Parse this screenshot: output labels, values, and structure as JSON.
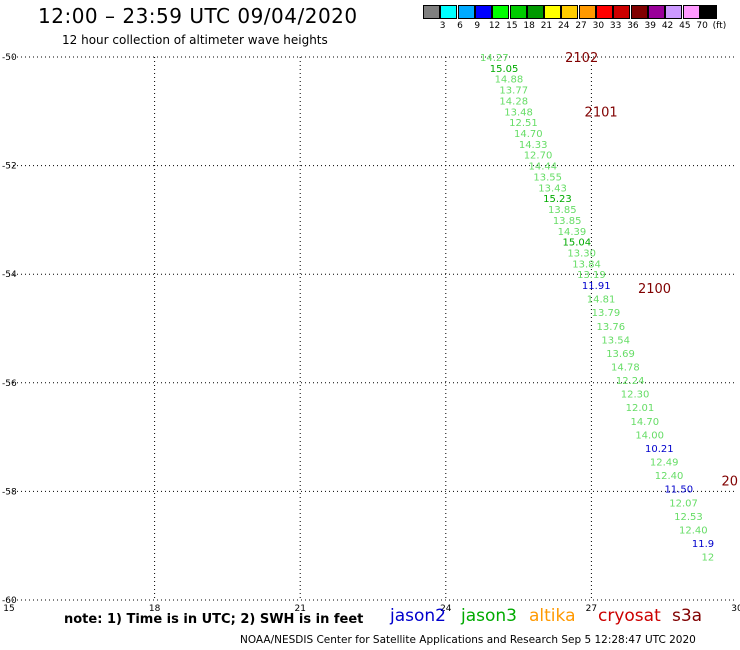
{
  "header": {
    "title": "12:00 – 23:59 UTC 09/04/2020",
    "subtitle": "12 hour collection of altimeter wave heights"
  },
  "colorbar": {
    "labels": [
      "3",
      "6",
      "9",
      "12",
      "15",
      "18",
      "21",
      "24",
      "27",
      "30",
      "33",
      "36",
      "39",
      "42",
      "45",
      "70",
      "(ft)"
    ],
    "colors": [
      "#7f7f7f",
      "#00ffff",
      "#00aaff",
      "#0000ff",
      "#00ff00",
      "#00cc00",
      "#009900",
      "#ffff00",
      "#ffcc00",
      "#ff9900",
      "#ff0000",
      "#cc0000",
      "#800000",
      "#990099",
      "#cc99ff",
      "#ff99ff",
      "#000000"
    ]
  },
  "footer": {
    "note": "note: 1) Time is in UTC; 2) SWH is in feet",
    "credit": "NOAA/NESDIS Center for Satellite Applications and Research   Sep  5 12:28:47 UTC 2020"
  },
  "satellites": [
    {
      "name": "jason2",
      "color": "#0000cc"
    },
    {
      "name": "jason3",
      "color": "#00aa00"
    },
    {
      "name": "altika",
      "color": "#ff9900"
    },
    {
      "name": "cryosat",
      "color": "#cc0000"
    },
    {
      "name": "s3a",
      "color": "#800000"
    }
  ],
  "chart_data": {
    "type": "scatter",
    "xlim": [
      15,
      30
    ],
    "ylim": [
      -60,
      -50
    ],
    "x_ticks": [
      "15",
      "18",
      "21",
      "24",
      "27",
      "30"
    ],
    "y_ticks": [
      "-50",
      "-52",
      "-54",
      "-56",
      "-58",
      "-60"
    ],
    "grid": true,
    "points": [
      {
        "x": 25.0,
        "y": -50.0,
        "label": "14.27",
        "color": "#66dd66"
      },
      {
        "x": 25.2,
        "y": -50.2,
        "label": "15.05",
        "color": "#00aa00"
      },
      {
        "x": 25.3,
        "y": -50.4,
        "label": "14.88",
        "color": "#66dd66"
      },
      {
        "x": 25.4,
        "y": -50.6,
        "label": "13.77",
        "color": "#66dd66"
      },
      {
        "x": 25.4,
        "y": -50.8,
        "label": "14.28",
        "color": "#66dd66"
      },
      {
        "x": 25.5,
        "y": -51.0,
        "label": "13.48",
        "color": "#66dd66"
      },
      {
        "x": 25.6,
        "y": -51.2,
        "label": "12.51",
        "color": "#66dd66"
      },
      {
        "x": 25.7,
        "y": -51.4,
        "label": "14.70",
        "color": "#66dd66"
      },
      {
        "x": 25.8,
        "y": -51.6,
        "label": "14.33",
        "color": "#66dd66"
      },
      {
        "x": 25.9,
        "y": -51.8,
        "label": "12.70",
        "color": "#66dd66"
      },
      {
        "x": 26.0,
        "y": -52.0,
        "label": "14.44",
        "color": "#66dd66"
      },
      {
        "x": 26.1,
        "y": -52.2,
        "label": "13.55",
        "color": "#66dd66"
      },
      {
        "x": 26.2,
        "y": -52.4,
        "label": "13.43",
        "color": "#66dd66"
      },
      {
        "x": 26.3,
        "y": -52.6,
        "label": "15.23",
        "color": "#00aa00"
      },
      {
        "x": 26.4,
        "y": -52.8,
        "label": "13.85",
        "color": "#66dd66"
      },
      {
        "x": 26.5,
        "y": -53.0,
        "label": "13.85",
        "color": "#66dd66"
      },
      {
        "x": 26.6,
        "y": -53.2,
        "label": "14.39",
        "color": "#66dd66"
      },
      {
        "x": 26.7,
        "y": -53.4,
        "label": "15.04",
        "color": "#00aa00"
      },
      {
        "x": 26.8,
        "y": -53.6,
        "label": "13.30",
        "color": "#66dd66"
      },
      {
        "x": 26.9,
        "y": -53.8,
        "label": "13.84",
        "color": "#66dd66"
      },
      {
        "x": 27.0,
        "y": -54.0,
        "label": "13.19",
        "color": "#66dd66"
      },
      {
        "x": 27.1,
        "y": -54.2,
        "label": "11.91",
        "color": "#0000cc"
      },
      {
        "x": 27.2,
        "y": -54.45,
        "label": "14.81",
        "color": "#66dd66"
      },
      {
        "x": 27.3,
        "y": -54.7,
        "label": "13.79",
        "color": "#66dd66"
      },
      {
        "x": 27.4,
        "y": -54.95,
        "label": "13.76",
        "color": "#66dd66"
      },
      {
        "x": 27.5,
        "y": -55.2,
        "label": "13.54",
        "color": "#66dd66"
      },
      {
        "x": 27.6,
        "y": -55.45,
        "label": "13.69",
        "color": "#66dd66"
      },
      {
        "x": 27.7,
        "y": -55.7,
        "label": "14.78",
        "color": "#66dd66"
      },
      {
        "x": 27.8,
        "y": -55.95,
        "label": "12.24",
        "color": "#66dd66"
      },
      {
        "x": 27.9,
        "y": -56.2,
        "label": "12.30",
        "color": "#66dd66"
      },
      {
        "x": 28.0,
        "y": -56.45,
        "label": "12.01",
        "color": "#66dd66"
      },
      {
        "x": 28.1,
        "y": -56.7,
        "label": "14.70",
        "color": "#66dd66"
      },
      {
        "x": 28.2,
        "y": -56.95,
        "label": "14.00",
        "color": "#66dd66"
      },
      {
        "x": 28.4,
        "y": -57.2,
        "label": "10.21",
        "color": "#0000cc"
      },
      {
        "x": 28.5,
        "y": -57.45,
        "label": "12.49",
        "color": "#66dd66"
      },
      {
        "x": 28.6,
        "y": -57.7,
        "label": "12.40",
        "color": "#66dd66"
      },
      {
        "x": 28.8,
        "y": -57.95,
        "label": "11.50",
        "color": "#0000cc"
      },
      {
        "x": 28.9,
        "y": -58.2,
        "label": "12.07",
        "color": "#66dd66"
      },
      {
        "x": 29.0,
        "y": -58.45,
        "label": "12.53",
        "color": "#66dd66"
      },
      {
        "x": 29.1,
        "y": -58.7,
        "label": "12.40",
        "color": "#66dd66"
      },
      {
        "x": 29.3,
        "y": -58.95,
        "label": "11.9",
        "color": "#0000cc"
      },
      {
        "x": 29.4,
        "y": -59.2,
        "label": "12",
        "color": "#66dd66"
      }
    ],
    "annotations": [
      {
        "x": 26.8,
        "y": -50.0,
        "label": "2102",
        "color": "#800000"
      },
      {
        "x": 27.2,
        "y": -51.0,
        "label": "2101",
        "color": "#800000"
      },
      {
        "x": 28.3,
        "y": -54.25,
        "label": "2100",
        "color": "#800000"
      },
      {
        "x": 29.85,
        "y": -57.8,
        "label": "20",
        "color": "#800000"
      }
    ]
  }
}
